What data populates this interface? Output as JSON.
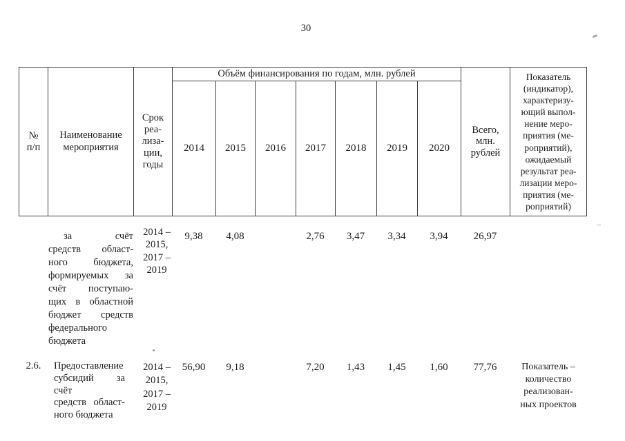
{
  "page": {
    "number": "30"
  },
  "table": {
    "header": {
      "num": "№\nп/п",
      "name": "Наименование\nмероприятия",
      "period": "Срок\nреа-\nлиза-\nции,\nгоды",
      "finance_title": "Объём финансирования по годам, млн. рублей",
      "years": [
        "2014",
        "2015",
        "2016",
        "2017",
        "2018",
        "2019",
        "2020"
      ],
      "total": "Всего,\nмлн.\nрублей",
      "indicator": "Показатель\n(индикатор),\nхарактеризу-\nющий выпол-\nнение меро-\nприятия (ме-\nроприятий),\nожидаемый\nрезультат реа-\nлизации меро-\nприятия (ме-\nроприятий)"
    },
    "rows": [
      {
        "num": "",
        "name_lines": [
          "за счёт",
          "средств област-",
          "ного бюджета,",
          "формируемых за",
          "счёт поступаю-",
          "щих в областной",
          "бюджет средств",
          "федерального",
          "бюджета"
        ],
        "period": "2014 –\n2015,\n2017 –\n2019",
        "values": [
          "9,38",
          "4,08",
          "",
          "2,76",
          "3,47",
          "3,34",
          "3,94"
        ],
        "total": "26,97",
        "indicator": ""
      },
      {
        "num": "2.6.",
        "name_lines": [
          "Предоставление",
          "субсидий за счёт",
          "средств област-",
          "ного бюджета"
        ],
        "period": "2014 –\n2015,\n2017 –\n2019",
        "values": [
          "56,90",
          "9,18",
          "",
          "7,20",
          "1,43",
          "1,45",
          "1,60"
        ],
        "total": "77,76",
        "indicator": "Показатель –\nколичество\nреализован-\nных проектов"
      }
    ]
  }
}
